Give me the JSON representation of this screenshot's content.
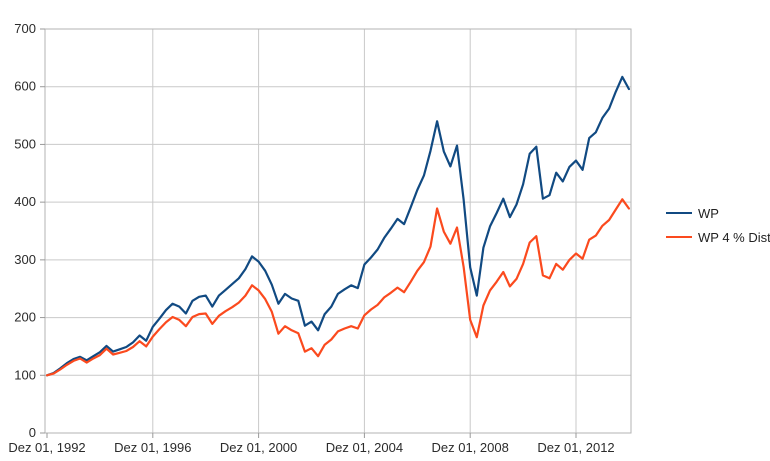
{
  "chart_data": {
    "type": "line",
    "title": "",
    "x_axis": {
      "tick_labels": [
        "Dez 01, 1992",
        "Dez 01, 1996",
        "Dez 01, 2000",
        "Dez 01, 2004",
        "Dez 01, 2008",
        "Dez 01, 2012"
      ],
      "tick_years_offset": [
        0,
        4,
        8,
        12,
        16,
        20
      ],
      "start_label": "Dez 01, 1992",
      "points_step_years": 0.25,
      "end_years_offset": 22.0
    },
    "y_axis": {
      "min": 0,
      "max": 700,
      "step": 100,
      "tick_labels": [
        "0",
        "100",
        "200",
        "300",
        "400",
        "500",
        "600",
        "700"
      ]
    },
    "grid": {
      "horizontal": true,
      "vertical": true
    },
    "legend": {
      "position": "right",
      "entries": [
        "WP",
        "WP 4 % Dist."
      ]
    },
    "series": [
      {
        "name": "WP",
        "color": "#114a82",
        "values": [
          100,
          104,
          112,
          121,
          128,
          132,
          126,
          133,
          140,
          151,
          141,
          145,
          149,
          157,
          169,
          160,
          184,
          198,
          213,
          224,
          219,
          207,
          229,
          236,
          238,
          219,
          238,
          248,
          258,
          268,
          284,
          306,
          297,
          281,
          257,
          224,
          241,
          233,
          229,
          186,
          193,
          178,
          206,
          219,
          241,
          249,
          256,
          251,
          292,
          304,
          318,
          338,
          354,
          371,
          362,
          391,
          421,
          446,
          489,
          540,
          488,
          462,
          498,
          405,
          287,
          238,
          321,
          358,
          381,
          406,
          374,
          396,
          431,
          484,
          496,
          406,
          412,
          451,
          436,
          461,
          472,
          456,
          511,
          521,
          546,
          562,
          591,
          617,
          596
        ]
      },
      {
        "name": "WP 4 % Dist.",
        "color": "#fb4a1e",
        "values": [
          100,
          103,
          110,
          118,
          125,
          129,
          122,
          129,
          135,
          146,
          136,
          139,
          142,
          149,
          159,
          150,
          167,
          180,
          192,
          201,
          196,
          185,
          201,
          206,
          207,
          189,
          203,
          211,
          218,
          226,
          238,
          256,
          247,
          232,
          210,
          172,
          185,
          178,
          173,
          141,
          147,
          133,
          153,
          162,
          176,
          181,
          185,
          181,
          204,
          214,
          222,
          235,
          243,
          252,
          244,
          262,
          281,
          296,
          323,
          389,
          349,
          328,
          356,
          288,
          196,
          166,
          221,
          247,
          262,
          279,
          254,
          267,
          293,
          330,
          341,
          273,
          268,
          293,
          283,
          300,
          311,
          302,
          335,
          342,
          359,
          369,
          387,
          405,
          389
        ]
      }
    ],
    "colors": {
      "gridline": "#c9c9c9",
      "frame": "#b3b3b3",
      "tick": "#999999",
      "label": "#2b2b2b",
      "background": "#ffffff"
    }
  }
}
